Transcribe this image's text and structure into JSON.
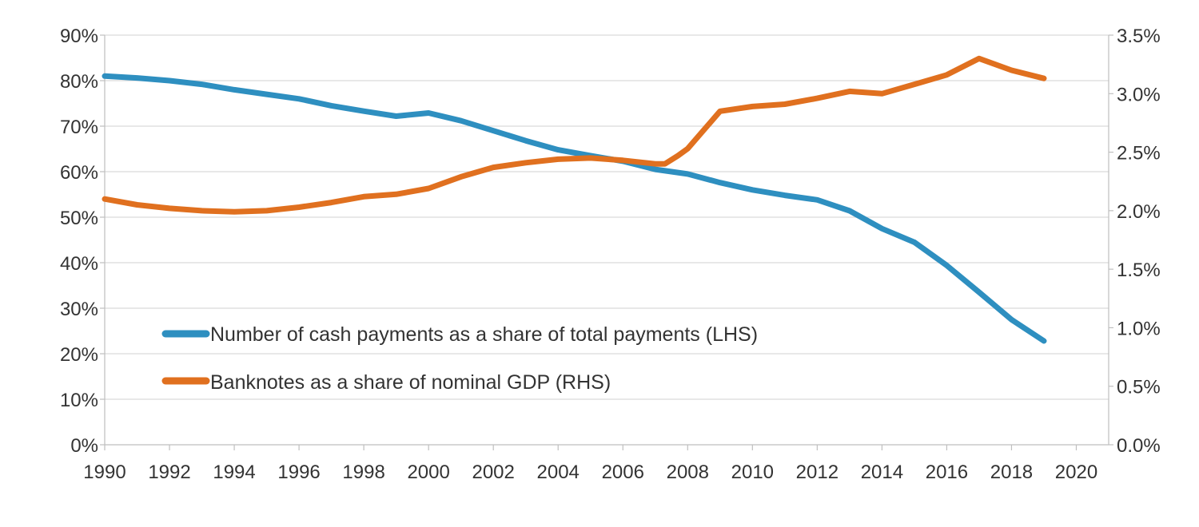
{
  "chart_data": {
    "type": "line",
    "title": "",
    "xlabel": "",
    "ylabel": "",
    "y2label": "",
    "grid": true,
    "xlim": [
      1990,
      2021
    ],
    "x_ticks": [
      "1990",
      "1992",
      "1994",
      "1996",
      "1998",
      "2000",
      "2002",
      "2004",
      "2006",
      "2008",
      "2010",
      "2012",
      "2014",
      "2016",
      "2018",
      "2020"
    ],
    "y_left": {
      "ylim": [
        0,
        90
      ],
      "ticks": [
        "0%",
        "10%",
        "20%",
        "30%",
        "40%",
        "50%",
        "60%",
        "70%",
        "80%",
        "90%"
      ]
    },
    "y_right": {
      "ylim": [
        0,
        3.5
      ],
      "ticks": [
        "0.0%",
        "0.5%",
        "1.0%",
        "1.5%",
        "2.0%",
        "2.5%",
        "3.0%",
        "3.5%"
      ]
    },
    "legend_position": "lower-left inside plot",
    "series": [
      {
        "name": "Number of cash payments as a share of total payments (LHS)",
        "axis": "left",
        "color": "#2E8FC0",
        "x": [
          1990,
          1991,
          1992,
          1993,
          1994,
          1995,
          1996,
          1997,
          1998,
          1999,
          2000,
          2001,
          2002,
          2003,
          2004,
          2005,
          2006,
          2007,
          2008,
          2009,
          2010,
          2011,
          2012,
          2013,
          2014,
          2015,
          2016,
          2017,
          2018,
          2019
        ],
        "values": [
          81,
          80.6,
          80,
          79.2,
          78,
          77,
          76,
          74.5,
          73.3,
          72.2,
          72.9,
          71.2,
          69,
          66.8,
          64.8,
          63.5,
          62.3,
          60.5,
          59.5,
          57.6,
          56,
          54.8,
          53.8,
          51.4,
          47.5,
          44.5,
          39.4,
          33.5,
          27.5,
          22.8
        ]
      },
      {
        "name": "Banknotes as a share of nominal GDP (RHS)",
        "axis": "right",
        "color": "#E0701F",
        "x": [
          1990,
          1991,
          1992,
          1993,
          1994,
          1995,
          1996,
          1997,
          1998,
          1999,
          2000,
          2001,
          2002,
          2003,
          2004,
          2005,
          2006,
          2007,
          2007.3,
          2007.7,
          2008,
          2009,
          2010,
          2011,
          2012,
          2013,
          2014,
          2015,
          2016,
          2017,
          2018,
          2019
        ],
        "values": [
          2.1,
          2.05,
          2.02,
          2.0,
          1.99,
          2.0,
          2.03,
          2.07,
          2.12,
          2.14,
          2.19,
          2.29,
          2.37,
          2.41,
          2.44,
          2.45,
          2.43,
          2.4,
          2.4,
          2.47,
          2.53,
          2.85,
          2.89,
          2.91,
          2.96,
          3.02,
          3.0,
          3.08,
          3.16,
          3.3,
          3.2,
          3.13
        ]
      }
    ]
  }
}
